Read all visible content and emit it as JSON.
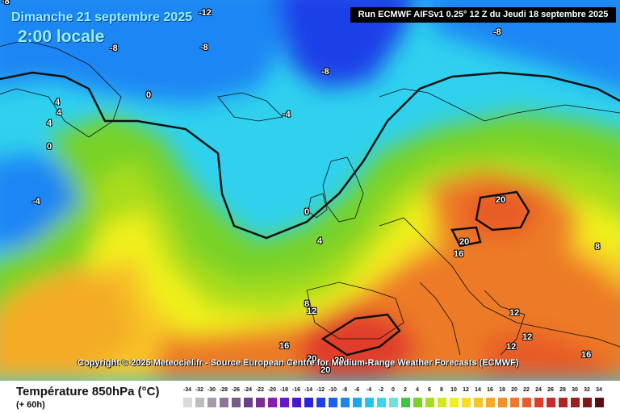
{
  "header": {
    "date": "Dimanche 21 septembre 2025",
    "time": "2:00 locale",
    "run": "Run ECMWF AIFSv1 0.25° 12 Z du Jeudi 18 septembre 2025"
  },
  "copyright": "Copyright © 2025 Meteociel.fr - Source European Centre for Medium-Range Weather Forecasts (ECMWF)",
  "footer": {
    "parameter": "Température 850hPa (°C)",
    "lead": "(+ 60h)"
  },
  "contour_labels": [
    "-12",
    "-8",
    "-8",
    "-8",
    "-8",
    "-4",
    "-4",
    "0",
    "0",
    "4",
    "4",
    "4",
    "0",
    "4",
    "8",
    "12",
    "16",
    "20",
    "20",
    "20",
    "16",
    "8",
    "12",
    "12",
    "12",
    "16",
    "20",
    "20",
    "-8"
  ],
  "scale": {
    "ticks": [
      "-34",
      "-32",
      "-30",
      "-28",
      "-26",
      "-24",
      "-22",
      "-20",
      "-18",
      "-16",
      "-14",
      "-12",
      "-10",
      "-8",
      "-6",
      "-4",
      "-2",
      "0",
      "2",
      "4",
      "6",
      "8",
      "10",
      "12",
      "14",
      "16",
      "18",
      "20",
      "22",
      "24",
      "26",
      "28",
      "30",
      "32",
      "34"
    ],
    "colors": [
      "#d9d9d9",
      "#bdbdbd",
      "#a39ca8",
      "#8c7599",
      "#7a5a8a",
      "#6b3f86",
      "#7b2e9a",
      "#8a1bb3",
      "#6818c8",
      "#4a16d6",
      "#2a22e0",
      "#1e40e8",
      "#1a63f0",
      "#1a86f4",
      "#18a8f2",
      "#24c4f2",
      "#3ad8ee",
      "#6be4d6",
      "#3cc83c",
      "#78d228",
      "#a8dc1e",
      "#d4e81a",
      "#f0f01e",
      "#f8dc28",
      "#f8c428",
      "#f4ac28",
      "#f09228",
      "#ec7a28",
      "#e85a28",
      "#e03c2a",
      "#cc2a2a",
      "#b42424",
      "#9c1e1e",
      "#801818",
      "#5a1010"
    ]
  },
  "colors": {
    "land_outline": "#111111",
    "isotherm_0": "#111111",
    "isotherm_20": "#111111"
  }
}
